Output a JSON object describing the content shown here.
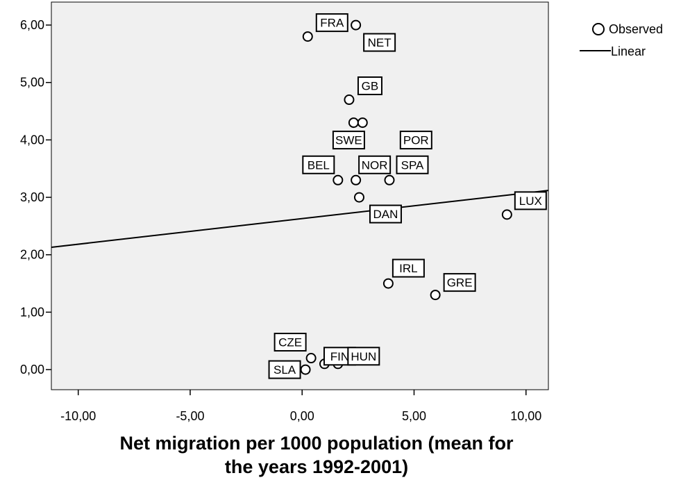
{
  "chart_data": {
    "type": "scatter",
    "xlabel_lines": [
      "Net migration per 1000 population (mean for",
      "the years 1992-2001)"
    ],
    "ylabel": "",
    "xlim": [
      -11.2,
      11.0
    ],
    "ylim": [
      -0.35,
      6.4
    ],
    "x_ticks": [
      -10,
      -5,
      0,
      5,
      10
    ],
    "y_ticks": [
      0,
      1,
      2,
      3,
      4,
      5,
      6
    ],
    "x_tick_labels": [
      "-10,00",
      "-5,00",
      "0,00",
      "5,00",
      "10,00"
    ],
    "y_tick_labels": [
      "0,00",
      "1,00",
      "2,00",
      "3,00",
      "4,00",
      "5,00",
      "6,00"
    ],
    "grid": false,
    "legend_position": "top-right",
    "legend": [
      "Observed",
      "Linear"
    ],
    "series": [
      {
        "name": "Observed",
        "points": [
          {
            "label": "FRA",
            "x": 0.25,
            "y": 5.8
          },
          {
            "label": "NET",
            "x": 2.4,
            "y": 6.0
          },
          {
            "label": "GB",
            "x": 2.1,
            "y": 4.7
          },
          {
            "label": "SWE",
            "x": 2.3,
            "y": 4.3
          },
          {
            "label": "POR",
            "x": 2.7,
            "y": 4.3
          },
          {
            "label": "BEL",
            "x": 1.6,
            "y": 3.3
          },
          {
            "label": "NOR",
            "x": 2.4,
            "y": 3.3
          },
          {
            "label": "SPA",
            "x": 3.9,
            "y": 3.3
          },
          {
            "label": "DAN",
            "x": 2.55,
            "y": 3.0
          },
          {
            "label": "LUX",
            "x": 9.15,
            "y": 2.7
          },
          {
            "label": "IRL",
            "x": 3.85,
            "y": 1.5
          },
          {
            "label": "GRE",
            "x": 5.95,
            "y": 1.3
          },
          {
            "label": "CZE",
            "x": 0.4,
            "y": 0.2
          },
          {
            "label": "FIN",
            "x": 1.0,
            "y": 0.1
          },
          {
            "label": "HUN",
            "x": 1.6,
            "y": 0.1
          },
          {
            "label": "SLA",
            "x": 0.15,
            "y": 0.0
          }
        ]
      },
      {
        "name": "Linear",
        "line": {
          "x": [
            -11.2,
            11.0
          ],
          "y": [
            2.13,
            3.12
          ]
        }
      }
    ]
  },
  "colors": {
    "plot_background": "#f0f0f0",
    "axis": "#000000",
    "marker_fill": "#ffffff"
  }
}
